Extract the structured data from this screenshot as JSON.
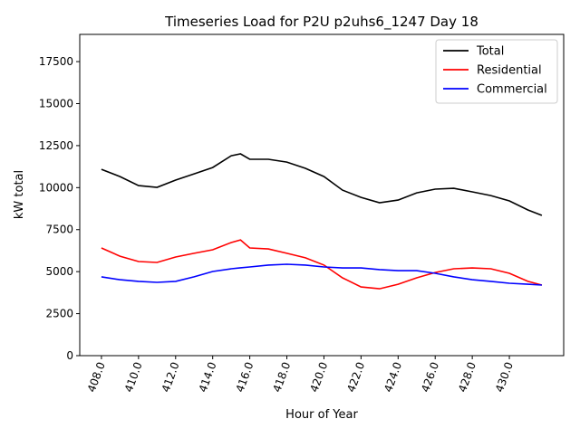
{
  "chart_data": {
    "type": "line",
    "title": "Timeseries Load for P2U p2uhs6_1247  Day 18",
    "xlabel": "Hour of Year",
    "ylabel": "kW total",
    "xlim": [
      406.83,
      432.93
    ],
    "ylim": [
      0,
      19120
    ],
    "xticks": [
      408,
      410,
      412,
      414,
      416,
      418,
      420,
      422,
      424,
      426,
      428,
      430
    ],
    "xtick_labels": [
      "408.0",
      "410.0",
      "412.0",
      "414.0",
      "416.0",
      "418.0",
      "420.0",
      "422.0",
      "424.0",
      "426.0",
      "428.0",
      "430.0"
    ],
    "yticks": [
      0,
      2500,
      5000,
      7500,
      10000,
      12500,
      15000,
      17500
    ],
    "ytick_labels": [
      "0",
      "2500",
      "5000",
      "7500",
      "10000",
      "12500",
      "15000",
      "17500"
    ],
    "grid": false,
    "legend_position": "top-right",
    "x": [
      408,
      409,
      410,
      411,
      412,
      413,
      414,
      415,
      415.5,
      416,
      417,
      418,
      419,
      420,
      421,
      422,
      423,
      424,
      425,
      426,
      427,
      428,
      429,
      430,
      431,
      431.75
    ],
    "series": [
      {
        "name": "Total",
        "color": "#000000",
        "values": [
          11090,
          10660,
          10120,
          10020,
          10450,
          10820,
          11200,
          11900,
          12010,
          11690,
          11690,
          11520,
          11150,
          10660,
          9850,
          9420,
          9100,
          9260,
          9690,
          9910,
          9960,
          9750,
          9530,
          9210,
          8670,
          8350
        ]
      },
      {
        "name": "Residential",
        "color": "#ff0000",
        "values": [
          6410,
          5920,
          5600,
          5550,
          5870,
          6090,
          6300,
          6730,
          6890,
          6410,
          6350,
          6090,
          5820,
          5390,
          4630,
          4090,
          3980,
          4250,
          4630,
          4950,
          5170,
          5220,
          5170,
          4900,
          4420,
          4200
        ]
      },
      {
        "name": "Commercial",
        "color": "#0000ff",
        "values": [
          4690,
          4520,
          4420,
          4360,
          4420,
          4690,
          5010,
          5170,
          5230,
          5280,
          5390,
          5440,
          5390,
          5280,
          5220,
          5220,
          5120,
          5060,
          5060,
          4900,
          4690,
          4520,
          4420,
          4310,
          4250,
          4200
        ]
      }
    ]
  }
}
